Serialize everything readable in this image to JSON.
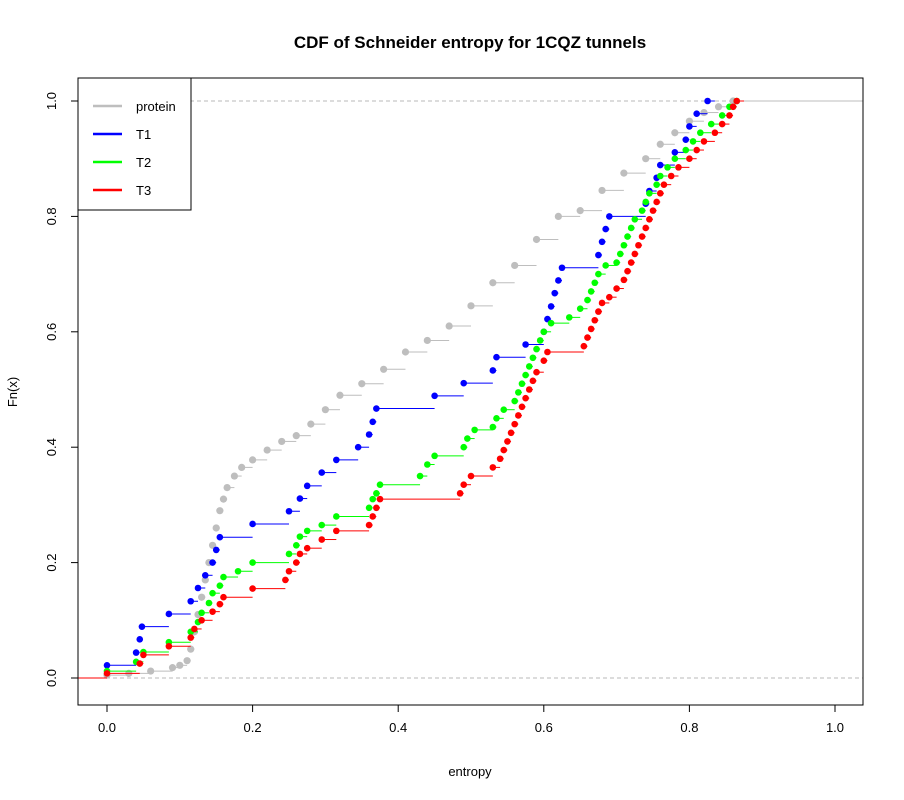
{
  "chart_data": {
    "type": "line",
    "title": "CDF of Schneider entropy for 1CQZ  tunnels",
    "xlabel": "entropy",
    "ylabel": "Fn(x)",
    "xlim": [
      0.0,
      1.0
    ],
    "ylim": [
      0.0,
      1.0
    ],
    "x_ticks": [
      "0.0",
      "0.2",
      "0.4",
      "0.6",
      "0.8",
      "1.0"
    ],
    "y_ticks": [
      "0.0",
      "0.2",
      "0.4",
      "0.6",
      "0.8",
      "1.0"
    ],
    "reference_lines": [
      0.0,
      1.0
    ],
    "legend_position": "top-left",
    "series": [
      {
        "name": "protein",
        "color": "#bebebe",
        "points": [
          [
            0.0,
            0.005
          ],
          [
            0.03,
            0.008
          ],
          [
            0.06,
            0.012
          ],
          [
            0.09,
            0.018
          ],
          [
            0.1,
            0.022
          ],
          [
            0.11,
            0.03
          ],
          [
            0.115,
            0.05
          ],
          [
            0.12,
            0.08
          ],
          [
            0.125,
            0.11
          ],
          [
            0.13,
            0.14
          ],
          [
            0.135,
            0.17
          ],
          [
            0.14,
            0.2
          ],
          [
            0.145,
            0.23
          ],
          [
            0.15,
            0.26
          ],
          [
            0.155,
            0.29
          ],
          [
            0.16,
            0.31
          ],
          [
            0.165,
            0.33
          ],
          [
            0.175,
            0.35
          ],
          [
            0.185,
            0.365
          ],
          [
            0.2,
            0.378
          ],
          [
            0.22,
            0.395
          ],
          [
            0.24,
            0.41
          ],
          [
            0.26,
            0.42
          ],
          [
            0.28,
            0.44
          ],
          [
            0.3,
            0.465
          ],
          [
            0.32,
            0.49
          ],
          [
            0.35,
            0.51
          ],
          [
            0.38,
            0.535
          ],
          [
            0.41,
            0.565
          ],
          [
            0.44,
            0.585
          ],
          [
            0.47,
            0.61
          ],
          [
            0.5,
            0.645
          ],
          [
            0.53,
            0.685
          ],
          [
            0.56,
            0.715
          ],
          [
            0.59,
            0.76
          ],
          [
            0.62,
            0.8
          ],
          [
            0.65,
            0.81
          ],
          [
            0.68,
            0.845
          ],
          [
            0.71,
            0.875
          ],
          [
            0.74,
            0.9
          ],
          [
            0.76,
            0.925
          ],
          [
            0.78,
            0.945
          ],
          [
            0.8,
            0.965
          ],
          [
            0.82,
            0.98
          ],
          [
            0.84,
            0.99
          ],
          [
            0.86,
            1.0
          ]
        ]
      },
      {
        "name": "T1",
        "color": "#0000ff",
        "points": [
          [
            0.0,
            0.022
          ],
          [
            0.04,
            0.044
          ],
          [
            0.045,
            0.067
          ],
          [
            0.048,
            0.089
          ],
          [
            0.085,
            0.111
          ],
          [
            0.115,
            0.133
          ],
          [
            0.125,
            0.156
          ],
          [
            0.135,
            0.178
          ],
          [
            0.145,
            0.2
          ],
          [
            0.15,
            0.222
          ],
          [
            0.155,
            0.244
          ],
          [
            0.2,
            0.267
          ],
          [
            0.25,
            0.289
          ],
          [
            0.265,
            0.311
          ],
          [
            0.275,
            0.333
          ],
          [
            0.295,
            0.356
          ],
          [
            0.315,
            0.378
          ],
          [
            0.345,
            0.4
          ],
          [
            0.36,
            0.422
          ],
          [
            0.365,
            0.444
          ],
          [
            0.37,
            0.467
          ],
          [
            0.45,
            0.489
          ],
          [
            0.49,
            0.511
          ],
          [
            0.53,
            0.533
          ],
          [
            0.535,
            0.556
          ],
          [
            0.575,
            0.578
          ],
          [
            0.6,
            0.6
          ],
          [
            0.605,
            0.622
          ],
          [
            0.61,
            0.644
          ],
          [
            0.615,
            0.667
          ],
          [
            0.62,
            0.689
          ],
          [
            0.625,
            0.711
          ],
          [
            0.675,
            0.733
          ],
          [
            0.68,
            0.756
          ],
          [
            0.685,
            0.778
          ],
          [
            0.69,
            0.8
          ],
          [
            0.74,
            0.822
          ],
          [
            0.745,
            0.844
          ],
          [
            0.755,
            0.867
          ],
          [
            0.76,
            0.889
          ],
          [
            0.78,
            0.911
          ],
          [
            0.795,
            0.933
          ],
          [
            0.8,
            0.956
          ],
          [
            0.81,
            0.978
          ],
          [
            0.825,
            1.0
          ]
        ]
      },
      {
        "name": "T2",
        "color": "#00ff00",
        "points": [
          [
            0.0,
            0.012
          ],
          [
            0.04,
            0.028
          ],
          [
            0.05,
            0.045
          ],
          [
            0.085,
            0.062
          ],
          [
            0.115,
            0.08
          ],
          [
            0.125,
            0.097
          ],
          [
            0.13,
            0.113
          ],
          [
            0.14,
            0.13
          ],
          [
            0.145,
            0.147
          ],
          [
            0.155,
            0.16
          ],
          [
            0.16,
            0.175
          ],
          [
            0.18,
            0.185
          ],
          [
            0.2,
            0.2
          ],
          [
            0.25,
            0.215
          ],
          [
            0.26,
            0.23
          ],
          [
            0.265,
            0.245
          ],
          [
            0.275,
            0.255
          ],
          [
            0.295,
            0.265
          ],
          [
            0.315,
            0.28
          ],
          [
            0.36,
            0.295
          ],
          [
            0.365,
            0.31
          ],
          [
            0.37,
            0.32
          ],
          [
            0.375,
            0.335
          ],
          [
            0.43,
            0.35
          ],
          [
            0.44,
            0.37
          ],
          [
            0.45,
            0.385
          ],
          [
            0.49,
            0.4
          ],
          [
            0.495,
            0.415
          ],
          [
            0.505,
            0.43
          ],
          [
            0.53,
            0.435
          ],
          [
            0.535,
            0.45
          ],
          [
            0.545,
            0.465
          ],
          [
            0.56,
            0.48
          ],
          [
            0.565,
            0.495
          ],
          [
            0.57,
            0.51
          ],
          [
            0.575,
            0.525
          ],
          [
            0.58,
            0.54
          ],
          [
            0.585,
            0.555
          ],
          [
            0.59,
            0.57
          ],
          [
            0.595,
            0.585
          ],
          [
            0.6,
            0.6
          ],
          [
            0.61,
            0.615
          ],
          [
            0.635,
            0.625
          ],
          [
            0.65,
            0.64
          ],
          [
            0.66,
            0.655
          ],
          [
            0.665,
            0.67
          ],
          [
            0.67,
            0.685
          ],
          [
            0.675,
            0.7
          ],
          [
            0.685,
            0.715
          ],
          [
            0.7,
            0.72
          ],
          [
            0.705,
            0.735
          ],
          [
            0.71,
            0.75
          ],
          [
            0.715,
            0.765
          ],
          [
            0.72,
            0.78
          ],
          [
            0.725,
            0.795
          ],
          [
            0.735,
            0.81
          ],
          [
            0.74,
            0.825
          ],
          [
            0.745,
            0.84
          ],
          [
            0.755,
            0.855
          ],
          [
            0.76,
            0.87
          ],
          [
            0.77,
            0.885
          ],
          [
            0.78,
            0.9
          ],
          [
            0.795,
            0.915
          ],
          [
            0.805,
            0.93
          ],
          [
            0.815,
            0.945
          ],
          [
            0.83,
            0.96
          ],
          [
            0.845,
            0.975
          ],
          [
            0.855,
            0.99
          ],
          [
            0.865,
            1.0
          ]
        ]
      },
      {
        "name": "T3",
        "color": "#ff0000",
        "points": [
          [
            0.0,
            0.008
          ],
          [
            0.045,
            0.025
          ],
          [
            0.05,
            0.04
          ],
          [
            0.085,
            0.055
          ],
          [
            0.115,
            0.07
          ],
          [
            0.12,
            0.085
          ],
          [
            0.13,
            0.1
          ],
          [
            0.145,
            0.115
          ],
          [
            0.155,
            0.128
          ],
          [
            0.16,
            0.14
          ],
          [
            0.2,
            0.155
          ],
          [
            0.245,
            0.17
          ],
          [
            0.25,
            0.185
          ],
          [
            0.26,
            0.2
          ],
          [
            0.265,
            0.215
          ],
          [
            0.275,
            0.225
          ],
          [
            0.295,
            0.24
          ],
          [
            0.315,
            0.255
          ],
          [
            0.36,
            0.265
          ],
          [
            0.365,
            0.28
          ],
          [
            0.37,
            0.295
          ],
          [
            0.375,
            0.31
          ],
          [
            0.485,
            0.32
          ],
          [
            0.49,
            0.335
          ],
          [
            0.5,
            0.35
          ],
          [
            0.53,
            0.365
          ],
          [
            0.54,
            0.38
          ],
          [
            0.545,
            0.395
          ],
          [
            0.55,
            0.41
          ],
          [
            0.555,
            0.425
          ],
          [
            0.56,
            0.44
          ],
          [
            0.565,
            0.455
          ],
          [
            0.57,
            0.47
          ],
          [
            0.575,
            0.485
          ],
          [
            0.58,
            0.5
          ],
          [
            0.585,
            0.515
          ],
          [
            0.59,
            0.53
          ],
          [
            0.6,
            0.55
          ],
          [
            0.605,
            0.565
          ],
          [
            0.655,
            0.575
          ],
          [
            0.66,
            0.59
          ],
          [
            0.665,
            0.605
          ],
          [
            0.67,
            0.62
          ],
          [
            0.675,
            0.635
          ],
          [
            0.68,
            0.65
          ],
          [
            0.69,
            0.66
          ],
          [
            0.7,
            0.675
          ],
          [
            0.71,
            0.69
          ],
          [
            0.715,
            0.705
          ],
          [
            0.72,
            0.72
          ],
          [
            0.725,
            0.735
          ],
          [
            0.73,
            0.75
          ],
          [
            0.735,
            0.765
          ],
          [
            0.74,
            0.78
          ],
          [
            0.745,
            0.795
          ],
          [
            0.75,
            0.81
          ],
          [
            0.755,
            0.825
          ],
          [
            0.76,
            0.84
          ],
          [
            0.765,
            0.855
          ],
          [
            0.775,
            0.87
          ],
          [
            0.785,
            0.885
          ],
          [
            0.8,
            0.9
          ],
          [
            0.81,
            0.915
          ],
          [
            0.82,
            0.93
          ],
          [
            0.835,
            0.945
          ],
          [
            0.845,
            0.96
          ],
          [
            0.855,
            0.975
          ],
          [
            0.86,
            0.99
          ],
          [
            0.865,
            1.0
          ]
        ]
      }
    ]
  }
}
